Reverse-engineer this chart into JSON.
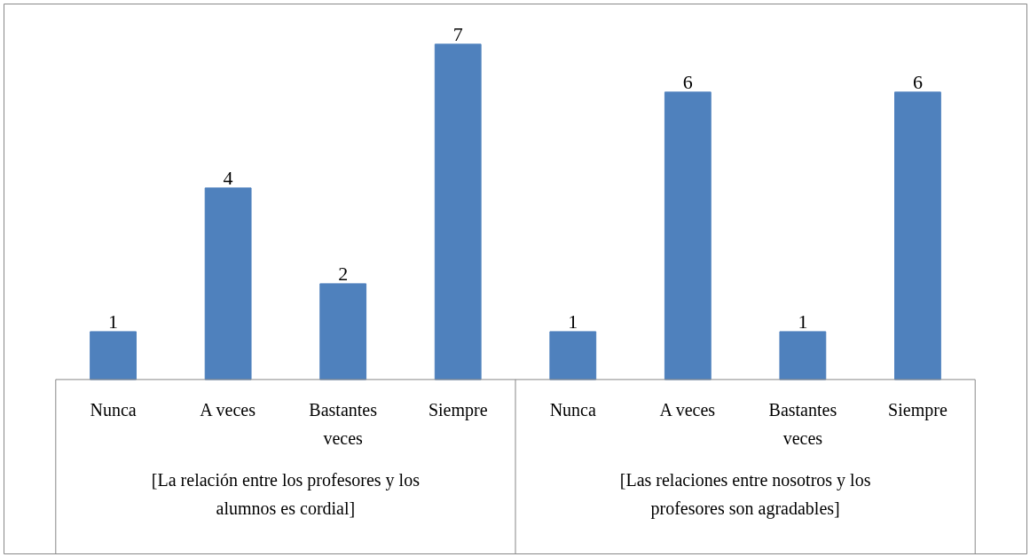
{
  "chart_data": {
    "type": "bar",
    "categories": [
      "Nunca",
      "A veces",
      "Bastantes veces",
      "Siempre",
      "Nunca",
      "A veces",
      "Bastantes veces",
      "Siempre"
    ],
    "values": [
      1,
      4,
      2,
      7,
      1,
      6,
      1,
      6
    ],
    "color": "#4f81bd",
    "data_labels": true,
    "annotations": [
      "[La relación entre los profesores y los alumnos es cordial]",
      "[Las relaciones entre nosotros y los profesores son agradables]"
    ]
  }
}
